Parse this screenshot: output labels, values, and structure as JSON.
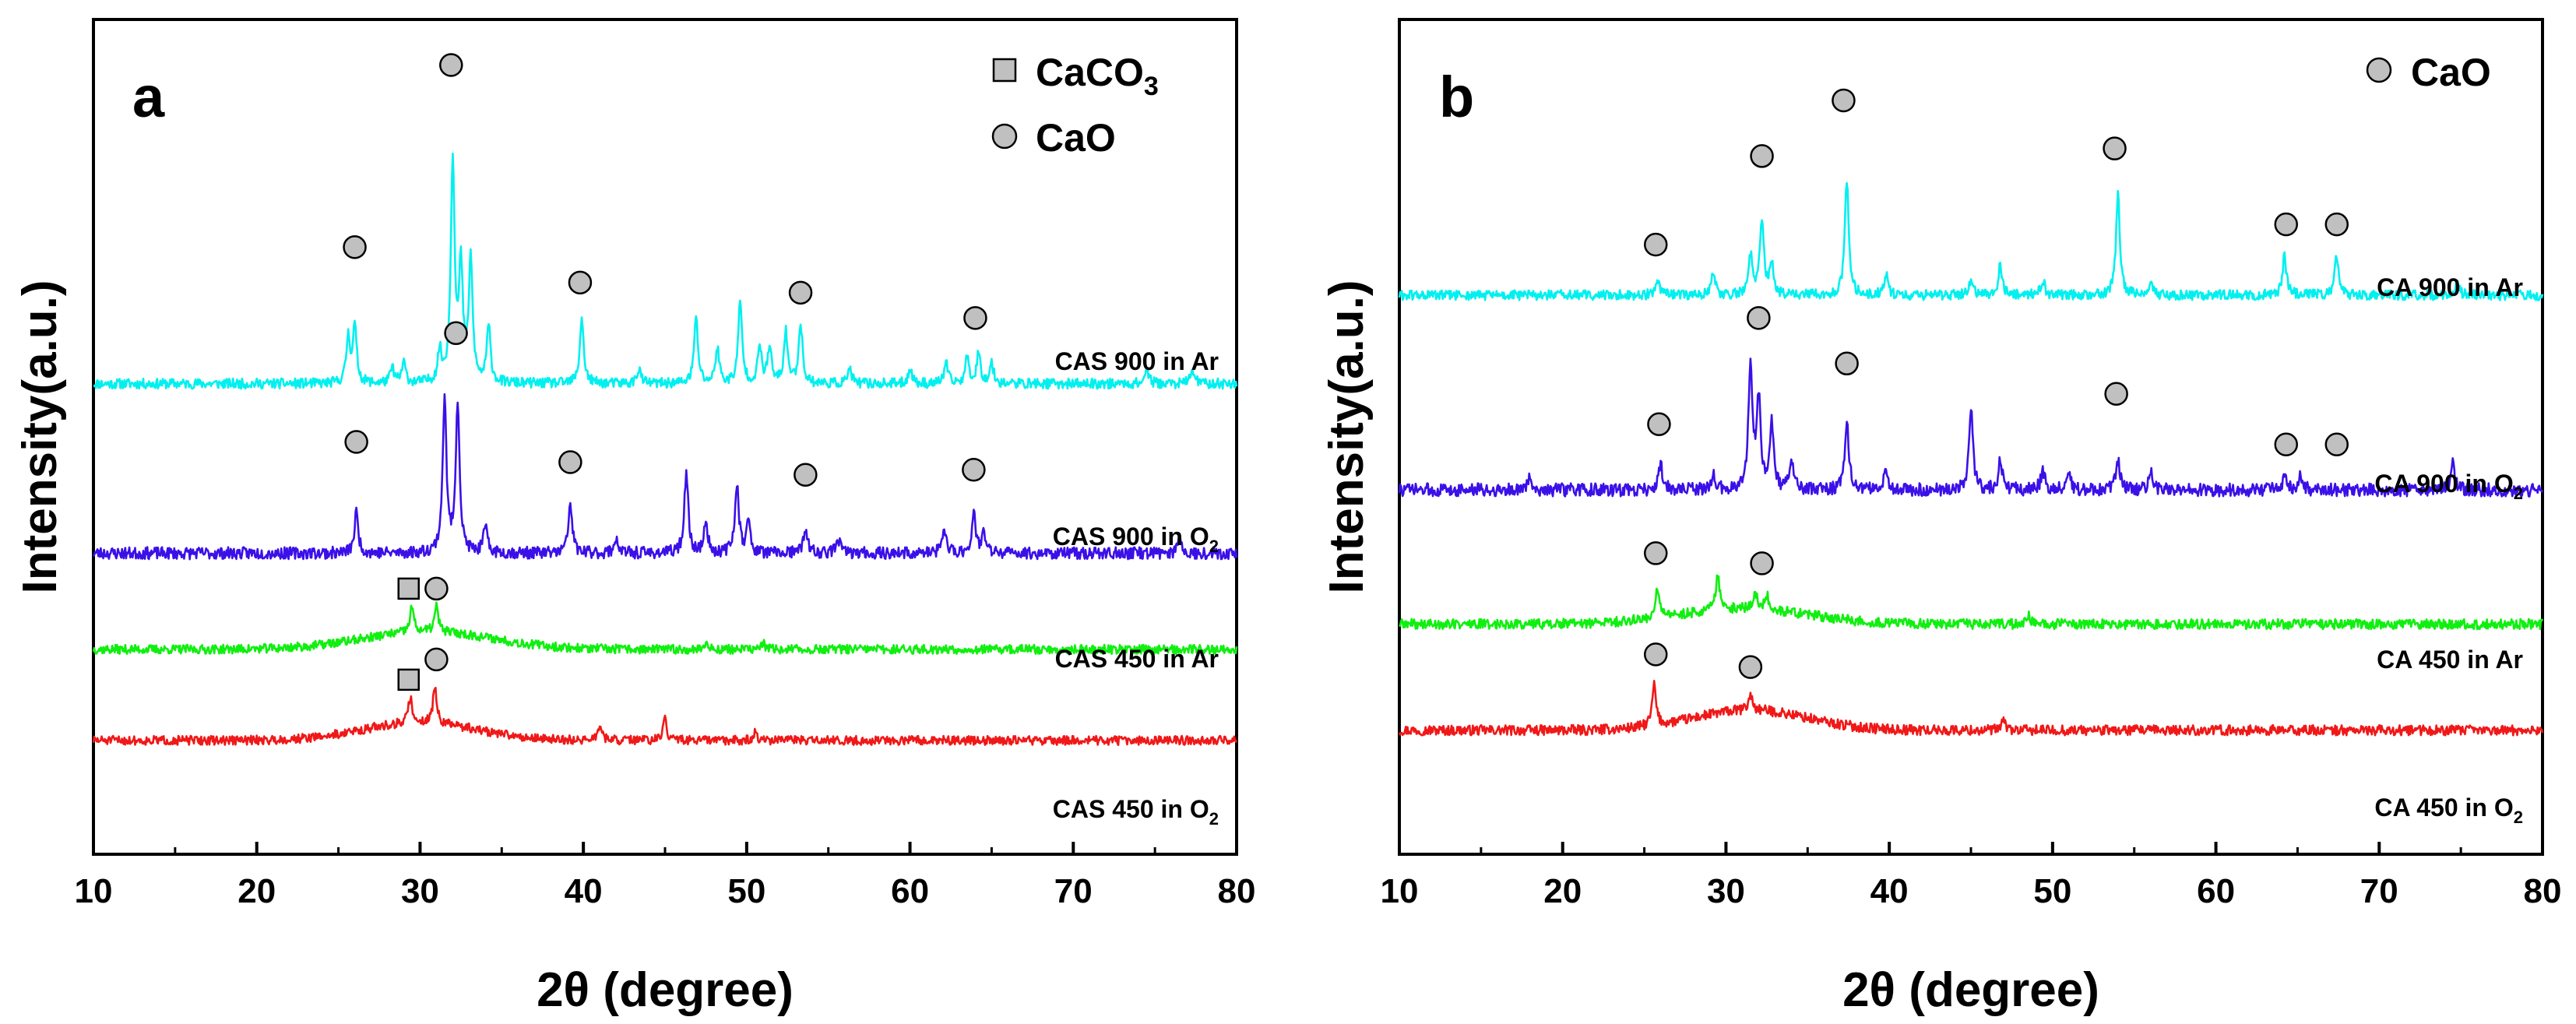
{
  "chart_data": [
    {
      "type": "line",
      "panel": "a",
      "xlabel": "2θ (degree)",
      "ylabel": "Intensity(a.u.)",
      "xlim": [
        10,
        80
      ],
      "xticks": [
        10,
        20,
        30,
        40,
        50,
        60,
        70,
        80
      ],
      "yticks": "none",
      "legend": [
        {
          "symbol": "square",
          "label": "CaCO",
          "sub": "3"
        },
        {
          "symbol": "circle",
          "label": "CaO",
          "sub": ""
        }
      ],
      "legend_position": "top-right",
      "series": [
        {
          "name": "CAS 900 in Ar",
          "label_main": "CAS 900 in Ar",
          "label_sub": "",
          "color": "#00f0f0",
          "baseline": 7.3,
          "noise": 0.1,
          "seed": 11,
          "peaks": [
            [
              25.6,
              0.9
            ],
            [
              26.0,
              1.1
            ],
            [
              28.3,
              0.3
            ],
            [
              29.0,
              0.4
            ],
            [
              31.2,
              0.6
            ],
            [
              32.0,
              4.4
            ],
            [
              32.5,
              2.2
            ],
            [
              33.1,
              2.4
            ],
            [
              34.2,
              1.1
            ],
            [
              39.9,
              1.3
            ],
            [
              43.4,
              0.3
            ],
            [
              46.9,
              1.3
            ],
            [
              48.2,
              0.7
            ],
            [
              49.6,
              1.6
            ],
            [
              50.8,
              0.7
            ],
            [
              51.4,
              0.7
            ],
            [
              52.4,
              1.0
            ],
            [
              53.3,
              1.2
            ],
            [
              56.3,
              0.3
            ],
            [
              60.0,
              0.3
            ],
            [
              62.2,
              0.4
            ],
            [
              63.5,
              0.5
            ],
            [
              64.2,
              0.6
            ],
            [
              65.0,
              0.4
            ],
            [
              74.5,
              0.3
            ],
            [
              77.3,
              0.3
            ]
          ],
          "markers": [
            {
              "type": "circle",
              "x": 26.0,
              "y": 10.0
            },
            {
              "type": "circle",
              "x": 31.9,
              "y": 13.6
            },
            {
              "type": "circle",
              "x": 39.8,
              "y": 9.3
            },
            {
              "type": "circle",
              "x": 53.3,
              "y": 9.1
            },
            {
              "type": "circle",
              "x": 64.0,
              "y": 8.6
            }
          ]
        },
        {
          "name": "CAS 900 in O2",
          "label_main": "CAS 900 in O",
          "label_sub": "2",
          "color": "#3b10e8",
          "baseline": 3.95,
          "noise": 0.12,
          "seed": 23,
          "peaks": [
            [
              26.1,
              0.8
            ],
            [
              31.5,
              3.0
            ],
            [
              32.3,
              3.0
            ],
            [
              34.0,
              0.5
            ],
            [
              39.2,
              1.0
            ],
            [
              42.0,
              0.3
            ],
            [
              46.3,
              1.6
            ],
            [
              47.5,
              0.6
            ],
            [
              49.4,
              1.4
            ],
            [
              50.1,
              0.6
            ],
            [
              53.6,
              0.5
            ],
            [
              55.6,
              0.3
            ],
            [
              62.1,
              0.5
            ],
            [
              63.9,
              0.8
            ],
            [
              64.5,
              0.4
            ],
            [
              76.5,
              0.3
            ]
          ],
          "markers": [
            {
              "type": "circle",
              "x": 26.1,
              "y": 6.15
            },
            {
              "type": "circle",
              "x": 32.2,
              "y": 8.3
            },
            {
              "type": "circle",
              "x": 39.2,
              "y": 5.75
            },
            {
              "type": "circle",
              "x": 53.6,
              "y": 5.5
            },
            {
              "type": "circle",
              "x": 63.9,
              "y": 5.6
            }
          ]
        },
        {
          "name": "CAS 450 in Ar",
          "label_main": "CAS 450 in Ar",
          "label_sub": "",
          "color": "#10ef10",
          "baseline": 2.05,
          "noise": 0.09,
          "seed": 37,
          "hump": [
            30.5,
            4.0,
            0.35
          ],
          "peaks": [
            [
              29.5,
              0.5
            ],
            [
              31.0,
              0.5
            ],
            [
              47.5,
              0.12
            ],
            [
              51.0,
              0.12
            ]
          ],
          "markers": [
            {
              "type": "square",
              "x": 29.3,
              "y": 3.25
            },
            {
              "type": "circle",
              "x": 31.0,
              "y": 3.25
            }
          ]
        },
        {
          "name": "CAS 450 in O2",
          "label_main": "CAS 450 in O",
          "label_sub": "2",
          "color": "#f01818",
          "baseline": 0.25,
          "noise": 0.09,
          "seed": 51,
          "hump": [
            30.0,
            3.5,
            0.35
          ],
          "peaks": [
            [
              29.4,
              0.5
            ],
            [
              30.9,
              0.7
            ],
            [
              41.0,
              0.3
            ],
            [
              45.0,
              0.4
            ],
            [
              50.5,
              0.15
            ]
          ],
          "markers": [
            {
              "type": "square",
              "x": 29.3,
              "y": 1.45
            },
            {
              "type": "circle",
              "x": 31.0,
              "y": 1.85
            }
          ]
        }
      ]
    },
    {
      "type": "line",
      "panel": "b",
      "xlabel": "2θ (degree)",
      "ylabel": "Intensity(a.u.)",
      "xlim": [
        10,
        80
      ],
      "xticks": [
        10,
        20,
        30,
        40,
        50,
        60,
        70,
        80
      ],
      "yticks": "none",
      "legend": [
        {
          "symbol": "circle",
          "label": "CaO",
          "sub": ""
        }
      ],
      "legend_position": "top-right",
      "series": [
        {
          "name": "CA 900 in Ar",
          "label_main": "CA 900 in Ar",
          "label_sub": "",
          "color": "#00f0f0",
          "baseline": 9.05,
          "noise": 0.1,
          "seed": 61,
          "peaks": [
            [
              25.8,
              0.3
            ],
            [
              29.2,
              0.5
            ],
            [
              31.5,
              0.8
            ],
            [
              32.2,
              1.5
            ],
            [
              32.8,
              0.6
            ],
            [
              37.4,
              2.3
            ],
            [
              39.8,
              0.4
            ],
            [
              45.0,
              0.3
            ],
            [
              46.8,
              0.6
            ],
            [
              49.4,
              0.3
            ],
            [
              54.0,
              2.0
            ],
            [
              56.0,
              0.3
            ],
            [
              64.2,
              0.8
            ],
            [
              67.4,
              0.8
            ],
            [
              74.8,
              0.2
            ]
          ],
          "markers": [
            {
              "type": "circle",
              "x": 25.7,
              "y": 10.05
            },
            {
              "type": "circle",
              "x": 32.2,
              "y": 11.8
            },
            {
              "type": "circle",
              "x": 37.2,
              "y": 12.9
            },
            {
              "type": "circle",
              "x": 53.8,
              "y": 11.95
            },
            {
              "type": "circle",
              "x": 64.3,
              "y": 10.45
            },
            {
              "type": "circle",
              "x": 67.4,
              "y": 10.45
            }
          ]
        },
        {
          "name": "CA 900 in O2",
          "label_main": "CA 900 in O",
          "label_sub": "2",
          "color": "#3b10e8",
          "baseline": 5.2,
          "noise": 0.13,
          "seed": 73,
          "peaks": [
            [
              18.0,
              0.25
            ],
            [
              26.0,
              0.5
            ],
            [
              29.2,
              0.3
            ],
            [
              31.5,
              2.5
            ],
            [
              32.0,
              1.8
            ],
            [
              32.8,
              1.3
            ],
            [
              34.0,
              0.6
            ],
            [
              37.4,
              1.4
            ],
            [
              39.8,
              0.4
            ],
            [
              45.0,
              1.7
            ],
            [
              46.8,
              0.6
            ],
            [
              49.4,
              0.4
            ],
            [
              51.0,
              0.3
            ],
            [
              54.0,
              0.6
            ],
            [
              56.0,
              0.4
            ],
            [
              64.2,
              0.3
            ],
            [
              65.2,
              0.3
            ],
            [
              74.5,
              0.5
            ]
          ],
          "markers": [
            {
              "type": "circle",
              "x": 25.9,
              "y": 6.5
            },
            {
              "type": "circle",
              "x": 32.0,
              "y": 8.6
            },
            {
              "type": "circle",
              "x": 37.4,
              "y": 7.7
            },
            {
              "type": "circle",
              "x": 53.9,
              "y": 7.1
            },
            {
              "type": "circle",
              "x": 64.3,
              "y": 6.1
            },
            {
              "type": "circle",
              "x": 67.4,
              "y": 6.1
            }
          ]
        },
        {
          "name": "CA 450 in Ar",
          "label_main": "CA 450 in Ar",
          "label_sub": "",
          "color": "#10ef10",
          "baseline": 2.55,
          "noise": 0.1,
          "seed": 89,
          "hump": [
            31.0,
            4.0,
            0.3
          ],
          "peaks": [
            [
              25.8,
              0.6
            ],
            [
              29.5,
              0.7
            ],
            [
              31.8,
              0.3
            ],
            [
              32.5,
              0.3
            ],
            [
              48.5,
              0.18
            ]
          ],
          "markers": [
            {
              "type": "circle",
              "x": 25.7,
              "y": 3.95
            },
            {
              "type": "circle",
              "x": 32.2,
              "y": 3.75
            }
          ]
        },
        {
          "name": "CA 450 in O2",
          "label_main": "CA 450 in O",
          "label_sub": "2",
          "color": "#f01818",
          "baseline": 0.45,
          "noise": 0.1,
          "seed": 97,
          "hump": [
            31.5,
            3.5,
            0.4
          ],
          "peaks": [
            [
              25.6,
              0.8
            ],
            [
              31.5,
              0.3
            ],
            [
              47.0,
              0.2
            ]
          ],
          "markers": [
            {
              "type": "circle",
              "x": 25.7,
              "y": 1.95
            },
            {
              "type": "circle",
              "x": 31.5,
              "y": 1.7
            }
          ]
        }
      ]
    }
  ]
}
